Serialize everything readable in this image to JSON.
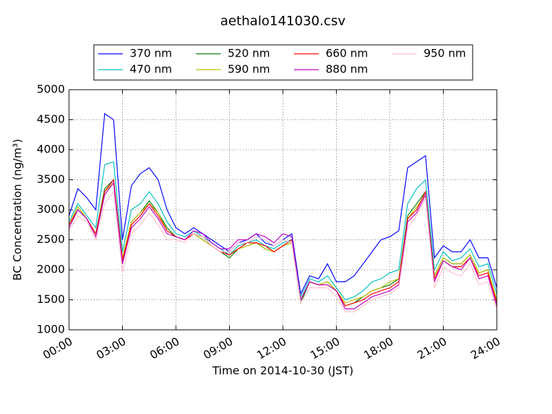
{
  "chart_data": {
    "type": "line",
    "title": "aethalo141030.csv",
    "x_label": "Time on 2014-10-30 (JST)",
    "y_label": "BC Concentration (ng/m³)",
    "x": [
      "00:00",
      "00:30",
      "01:00",
      "01:30",
      "02:00",
      "02:30",
      "03:00",
      "03:30",
      "04:00",
      "04:30",
      "05:00",
      "05:30",
      "06:00",
      "06:30",
      "07:00",
      "07:30",
      "08:00",
      "08:30",
      "09:00",
      "09:30",
      "10:00",
      "10:30",
      "11:00",
      "11:30",
      "12:00",
      "12:30",
      "13:00",
      "13:30",
      "14:00",
      "14:30",
      "15:00",
      "15:30",
      "16:00",
      "16:30",
      "17:00",
      "17:30",
      "18:00",
      "18:30",
      "19:00",
      "19:30",
      "20:00",
      "20:30",
      "21:00",
      "21:30",
      "22:00",
      "22:30",
      "23:00",
      "23:30",
      "24:00"
    ],
    "xlim": [
      "00:00",
      "24:00"
    ],
    "xticks": [
      "00:00",
      "03:00",
      "06:00",
      "09:00",
      "12:00",
      "15:00",
      "18:00",
      "21:00",
      "24:00"
    ],
    "ylim": [
      1000,
      5000
    ],
    "yticks": [
      1000,
      1500,
      2000,
      2500,
      3000,
      3500,
      4000,
      4500,
      5000
    ],
    "grid": true,
    "legend": "top",
    "series": [
      {
        "name": "370 nm",
        "color": "#0000ff",
        "values": [
          2900,
          3350,
          3200,
          3000,
          4600,
          4500,
          2500,
          3400,
          3600,
          3700,
          3500,
          3000,
          2700,
          2600,
          2700,
          2600,
          2500,
          2400,
          2300,
          2450,
          2500,
          2600,
          2450,
          2400,
          2500,
          2600,
          1600,
          1900,
          1850,
          2100,
          1800,
          1800,
          1900,
          2100,
          2300,
          2500,
          2550,
          2650,
          3700,
          3800,
          3900,
          2200,
          2400,
          2300,
          2300,
          2500,
          2200,
          2200,
          1700
        ]
      },
      {
        "name": "470 nm",
        "color": "#00bfbf",
        "values": [
          2800,
          3100,
          2900,
          2700,
          3750,
          3800,
          2300,
          3000,
          3100,
          3300,
          3100,
          2800,
          2600,
          2550,
          2650,
          2550,
          2450,
          2350,
          2250,
          2400,
          2450,
          2500,
          2400,
          2350,
          2450,
          2500,
          1550,
          1850,
          1800,
          1900,
          1700,
          1500,
          1550,
          1650,
          1800,
          1850,
          1950,
          2000,
          3100,
          3350,
          3500,
          2000,
          2300,
          2150,
          2200,
          2350,
          2050,
          2100,
          1600
        ]
      },
      {
        "name": "520 nm",
        "color": "#008000",
        "values": [
          2750,
          3050,
          2850,
          2600,
          3350,
          3500,
          2200,
          2800,
          2950,
          3150,
          2950,
          2700,
          2550,
          2500,
          2600,
          2500,
          2400,
          2300,
          2200,
          2350,
          2400,
          2450,
          2350,
          2300,
          2400,
          2450,
          1450,
          1800,
          1750,
          1800,
          1650,
          1400,
          1450,
          1550,
          1650,
          1700,
          1750,
          1850,
          2900,
          3100,
          3300,
          1900,
          2200,
          2100,
          2100,
          2250,
          1950,
          2000,
          1500
        ]
      },
      {
        "name": "590 nm",
        "color": "#bfbf00",
        "values": [
          2750,
          3050,
          2850,
          2600,
          3300,
          3450,
          2200,
          2800,
          2950,
          3100,
          2950,
          2650,
          2550,
          2500,
          2600,
          2500,
          2400,
          2300,
          2250,
          2350,
          2400,
          2450,
          2350,
          2300,
          2400,
          2450,
          1500,
          1800,
          1750,
          1800,
          1650,
          1450,
          1500,
          1550,
          1650,
          1700,
          1800,
          1850,
          2850,
          3050,
          3250,
          1900,
          2200,
          2100,
          2100,
          2250,
          1950,
          2000,
          1500
        ]
      },
      {
        "name": "660 nm",
        "color": "#ff0000",
        "values": [
          2750,
          3000,
          2850,
          2600,
          3300,
          3500,
          2150,
          2750,
          2900,
          3100,
          2900,
          2650,
          2550,
          2500,
          2600,
          2550,
          2400,
          2300,
          2250,
          2350,
          2450,
          2450,
          2400,
          2300,
          2400,
          2500,
          1500,
          1800,
          1750,
          1750,
          1650,
          1400,
          1450,
          1500,
          1600,
          1650,
          1700,
          1800,
          2850,
          3000,
          3300,
          1850,
          2150,
          2050,
          2050,
          2200,
          1900,
          1950,
          1450
        ]
      },
      {
        "name": "880 nm",
        "color": "#bf00bf",
        "values": [
          2700,
          3000,
          2850,
          2550,
          3250,
          3450,
          2100,
          2700,
          2850,
          3050,
          2850,
          2600,
          2550,
          2500,
          2650,
          2600,
          2450,
          2350,
          2350,
          2500,
          2500,
          2600,
          2550,
          2450,
          2600,
          2550,
          1500,
          1800,
          1750,
          1750,
          1650,
          1350,
          1350,
          1450,
          1550,
          1600,
          1650,
          1750,
          2800,
          2950,
          3250,
          1800,
          2150,
          2050,
          2000,
          2200,
          1850,
          1900,
          1400
        ]
      },
      {
        "name": "950 nm",
        "color": "#ffc0cb",
        "values": [
          2650,
          2900,
          2800,
          2500,
          3100,
          3300,
          1950,
          2600,
          2750,
          2950,
          2750,
          2500,
          2500,
          2450,
          2600,
          2550,
          2400,
          2300,
          2300,
          2450,
          2450,
          2550,
          2500,
          2400,
          2500,
          2450,
          1450,
          1700,
          1700,
          1700,
          1550,
          1300,
          1300,
          1400,
          1500,
          1550,
          1600,
          1700,
          2700,
          2900,
          3200,
          1700,
          2050,
          1950,
          1900,
          2100,
          1750,
          1800,
          1350
        ]
      }
    ]
  }
}
